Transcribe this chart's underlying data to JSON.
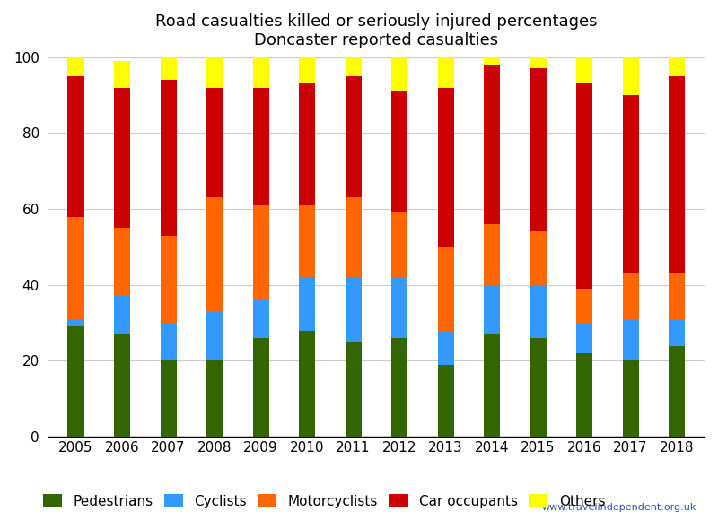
{
  "years": [
    2005,
    2006,
    2007,
    2008,
    2009,
    2010,
    2011,
    2012,
    2013,
    2014,
    2015,
    2016,
    2017,
    2018
  ],
  "pedestrians": [
    29,
    27,
    20,
    20,
    26,
    28,
    25,
    26,
    19,
    27,
    26,
    22,
    20,
    24
  ],
  "cyclists": [
    2,
    10,
    10,
    13,
    10,
    14,
    17,
    16,
    9,
    13,
    14,
    8,
    11,
    7
  ],
  "motorcyclists": [
    27,
    18,
    23,
    30,
    25,
    19,
    21,
    17,
    22,
    16,
    14,
    9,
    12,
    12
  ],
  "car_occupants": [
    37,
    37,
    41,
    29,
    31,
    32,
    32,
    32,
    42,
    42,
    43,
    54,
    47,
    52
  ],
  "others": [
    5,
    7,
    6,
    8,
    8,
    7,
    5,
    9,
    8,
    2,
    3,
    7,
    10,
    5
  ],
  "colors": {
    "pedestrians": "#336600",
    "cyclists": "#3399FF",
    "motorcyclists": "#FF6600",
    "car_occupants": "#CC0000",
    "others": "#FFFF00"
  },
  "title_line1": "Road casualties killed or seriously injured percentages",
  "title_line2": "Doncaster reported casualties",
  "ylim": [
    0,
    100
  ],
  "legend_labels": [
    "Pedestrians",
    "Cyclists",
    "Motorcyclists",
    "Car occupants",
    "Others"
  ],
  "watermark": "www.travelindependent.org.uk",
  "bar_width": 0.35,
  "figsize": [
    8.0,
    5.8
  ],
  "dpi": 100
}
